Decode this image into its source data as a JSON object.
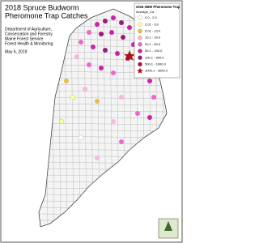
{
  "title": [
    "2018 Spruce Budworm",
    "Pheromone Trap Catches"
  ],
  "agency": [
    "Department of Agriculture,",
    "Conservation and Forestry",
    "Maine Forest Service",
    "Forest Health & Monitoring"
  ],
  "date": "May 6, 2019",
  "legend": {
    "title": "2018 SBW Pheromone Trap",
    "subtitle": "Average_Ca",
    "items": [
      {
        "label": "0.0 - 2.0",
        "color": "#ffffff"
      },
      {
        "label": "2.01 - 5.0",
        "color": "#ffff99"
      },
      {
        "label": "5.01 - 10.0",
        "color": "#e8c040"
      },
      {
        "label": "10.1 - 20.0",
        "color": "#f5b8e0"
      },
      {
        "label": "20.1 - 50.0",
        "color": "#ee66cc"
      },
      {
        "label": "50.1 - 100.0",
        "color": "#cc22aa"
      },
      {
        "label": "100.1 - 500.0",
        "color": "#9a1880"
      },
      {
        "label": "500.1 - 1000.0",
        "color": "#b01040"
      },
      {
        "label": "1000.1 - 3000.0",
        "color": "#b01010",
        "shape": "star"
      }
    ]
  }
}
